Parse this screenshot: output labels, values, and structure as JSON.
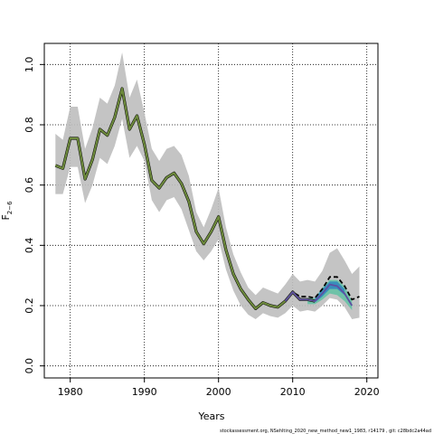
{
  "chart_data": {
    "type": "line",
    "xlabel": "Years",
    "ylabel": "F",
    "ylabel_subscript": "2−6",
    "xlim": [
      1976.5,
      2021.5
    ],
    "ylim": [
      -0.04,
      1.07
    ],
    "x_ticks": [
      1980,
      1990,
      2000,
      2010,
      2020
    ],
    "x_tick_labels": [
      "1980",
      "1990",
      "2000",
      "2010",
      "2020"
    ],
    "y_ticks": [
      0.0,
      0.2,
      0.4,
      0.6,
      0.8,
      1.0
    ],
    "y_tick_labels": [
      "0.0",
      "0.2",
      "0.4",
      "0.6",
      "0.8",
      "1.0"
    ],
    "grid": "dotted",
    "confidence_band": {
      "color": "#bebebe",
      "x": [
        1978,
        1979,
        1980,
        1981,
        1982,
        1983,
        1984,
        1985,
        1986,
        1987,
        1988,
        1989,
        1990,
        1991,
        1992,
        1993,
        1994,
        1995,
        1996,
        1997,
        1998,
        1999,
        2000,
        2001,
        2002,
        2003,
        2004,
        2005,
        2006,
        2007,
        2008,
        2009,
        2010,
        2011,
        2012,
        2013,
        2014,
        2015,
        2016,
        2017,
        2018,
        2019
      ],
      "lower": [
        0.57,
        0.57,
        0.66,
        0.66,
        0.54,
        0.6,
        0.69,
        0.67,
        0.73,
        0.82,
        0.69,
        0.73,
        0.68,
        0.55,
        0.51,
        0.55,
        0.56,
        0.52,
        0.45,
        0.38,
        0.35,
        0.38,
        0.42,
        0.32,
        0.25,
        0.2,
        0.17,
        0.155,
        0.175,
        0.165,
        0.16,
        0.175,
        0.2,
        0.18,
        0.185,
        0.18,
        0.2,
        0.225,
        0.22,
        0.195,
        0.155,
        0.16
      ],
      "upper": [
        0.77,
        0.75,
        0.86,
        0.86,
        0.72,
        0.79,
        0.89,
        0.87,
        0.93,
        1.04,
        0.89,
        0.95,
        0.84,
        0.72,
        0.68,
        0.72,
        0.73,
        0.7,
        0.63,
        0.51,
        0.46,
        0.52,
        0.59,
        0.46,
        0.37,
        0.31,
        0.26,
        0.235,
        0.26,
        0.25,
        0.24,
        0.27,
        0.305,
        0.28,
        0.285,
        0.28,
        0.315,
        0.375,
        0.39,
        0.35,
        0.305,
        0.33
      ]
    },
    "series": [
      {
        "color": "#6e8b3d",
        "x": [
          1978,
          1979,
          1980,
          1981,
          1982,
          1983,
          1984,
          1985,
          1986,
          1987,
          1988,
          1989,
          1990,
          1991,
          1992,
          1993,
          1994,
          1995,
          1996,
          1997,
          1998,
          1999,
          2000,
          2001,
          2002,
          2003,
          2004,
          2005,
          2006,
          2007,
          2008,
          2009,
          2010,
          2011,
          2012,
          2013
        ],
        "values": [
          0.665,
          0.655,
          0.755,
          0.755,
          0.62,
          0.685,
          0.785,
          0.765,
          0.825,
          0.92,
          0.785,
          0.83,
          0.735,
          0.615,
          0.59,
          0.625,
          0.64,
          0.605,
          0.545,
          0.445,
          0.405,
          0.445,
          0.495,
          0.385,
          0.305,
          0.255,
          0.22,
          0.19,
          0.21,
          0.2,
          0.195,
          0.215,
          0.245,
          0.22,
          0.22,
          0.215
        ]
      },
      {
        "color": "#000000",
        "dash": "dashed",
        "x": [
          2009,
          2010,
          2011,
          2012,
          2013,
          2014,
          2015,
          2016,
          2017,
          2018,
          2019
        ],
        "values": [
          0.215,
          0.245,
          0.23,
          0.23,
          0.225,
          0.255,
          0.295,
          0.295,
          0.265,
          0.22,
          0.23
        ]
      },
      {
        "color": "#5e4fa2",
        "x": [
          2009,
          2010,
          2011,
          2012,
          2013,
          2014,
          2015,
          2016,
          2017,
          2018
        ],
        "values": [
          0.215,
          0.245,
          0.22,
          0.22,
          0.215,
          0.24,
          0.27,
          0.265,
          0.24,
          0.2
        ]
      }
    ],
    "retro_bands": [
      {
        "color": "#66c2a5",
        "x": [
          2012,
          2013,
          2014,
          2015,
          2016,
          2017,
          2018
        ],
        "lower": [
          0.205,
          0.205,
          0.22,
          0.24,
          0.235,
          0.215,
          0.185
        ],
        "upper": [
          0.225,
          0.225,
          0.26,
          0.285,
          0.285,
          0.265,
          0.215
        ]
      },
      {
        "color": "#3288bd",
        "x": [
          2013,
          2014,
          2015,
          2016,
          2017
        ],
        "lower": [
          0.21,
          0.23,
          0.255,
          0.255,
          0.235
        ],
        "upper": [
          0.225,
          0.255,
          0.28,
          0.28,
          0.255
        ]
      }
    ]
  },
  "footer": "stockassessment.org, NSehlting_2020_new_method_new1_1983, r14179 , git: c28bdc2a44ad"
}
